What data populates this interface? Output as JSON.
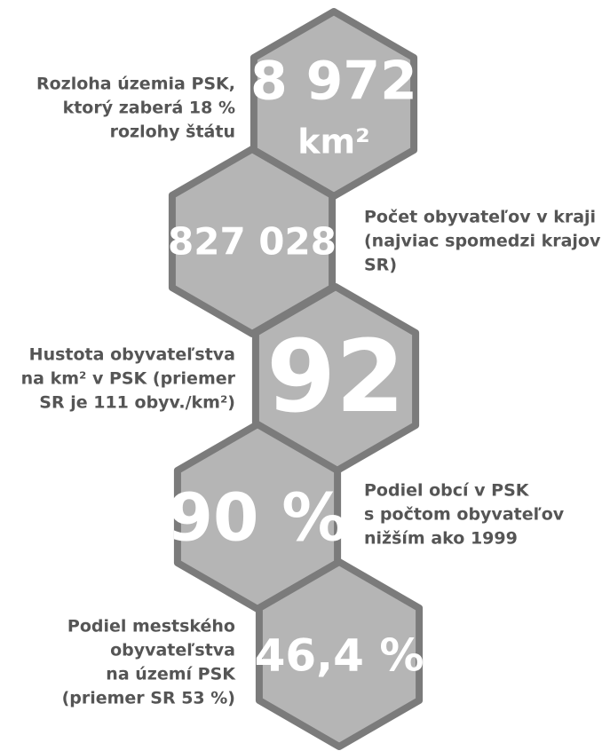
{
  "items": [
    {
      "value": [
        "8 972",
        "km²"
      ],
      "description": [
        "Rozloha územia PSK,",
        "ktorý zaberá 18 %",
        "rozlohy štátu"
      ]
    },
    {
      "value": [
        "827 028"
      ],
      "description": [
        "Počet obyvateľov v kraji",
        "(najviac spomedzi krajov",
        "SR)"
      ]
    },
    {
      "value": [
        "92"
      ],
      "description": [
        "Hustota obyvateľstva",
        "na km² v PSK (priemer",
        "SR je 111 obyv./km²)"
      ]
    },
    {
      "value": [
        "90 %"
      ],
      "description": [
        "Podiel obcí v PSK",
        "s počtom obyvateľov",
        "nižším ako 1999"
      ]
    },
    {
      "value": [
        "46,4 %"
      ],
      "description": [
        "Podiel mestského",
        "obyvateľstva",
        "na území PSK",
        "(priemer SR 53 %)"
      ]
    }
  ]
}
